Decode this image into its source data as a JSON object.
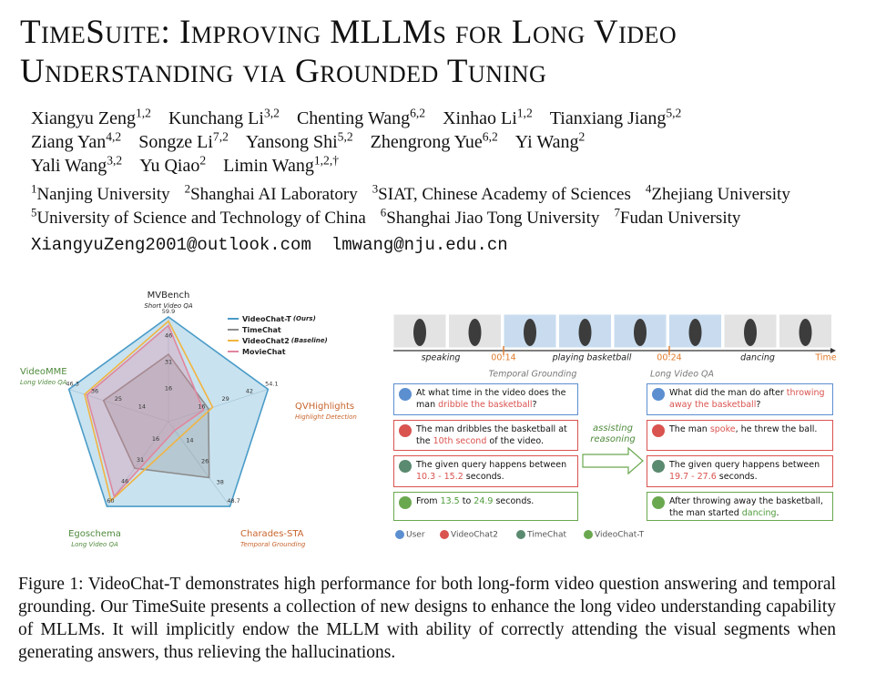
{
  "title": [
    "TimeSuite: Improving MLLMs for Long Video",
    "Understanding via Grounded Tuning"
  ],
  "authors": [
    {
      "name": "Xiangyu Zeng",
      "sup": "1,2"
    },
    {
      "name": "Kunchang Li",
      "sup": "3,2"
    },
    {
      "name": "Chenting Wang",
      "sup": "6,2"
    },
    {
      "name": "Xinhao Li",
      "sup": "1,2"
    },
    {
      "name": "Tianxiang Jiang",
      "sup": "5,2"
    },
    {
      "name": "Ziang Yan",
      "sup": "4,2"
    },
    {
      "name": "Songze Li",
      "sup": "7,2"
    },
    {
      "name": "Yansong Shi",
      "sup": "5,2"
    },
    {
      "name": "Zhengrong Yue",
      "sup": "6,2"
    },
    {
      "name": "Yi Wang",
      "sup": "2"
    },
    {
      "name": "Yali Wang",
      "sup": "3,2"
    },
    {
      "name": "Yu Qiao",
      "sup": "2"
    },
    {
      "name": "Limin Wang",
      "sup": "1,2,†"
    }
  ],
  "affiliations": [
    {
      "sup": "1",
      "name": "Nanjing University"
    },
    {
      "sup": "2",
      "name": "Shanghai AI Laboratory"
    },
    {
      "sup": "3",
      "name": "SIAT, Chinese Academy of Sciences"
    },
    {
      "sup": "4",
      "name": "Zhejiang University"
    },
    {
      "sup": "5",
      "name": "University of Science and Technology of China"
    },
    {
      "sup": "6",
      "name": "Shanghai Jiao Tong University"
    },
    {
      "sup": "7",
      "name": "Fudan University"
    }
  ],
  "emails": [
    "XiangyuZeng2001@outlook.com",
    "lmwang@nju.edu.cn"
  ],
  "radar": {
    "type": "radar",
    "axes": [
      {
        "name": "MVBench",
        "subtitle": "Short Video QA",
        "color": "#222222",
        "lim": [
          0,
          59.9
        ],
        "ticks": [
          16,
          31,
          46,
          59.9
        ]
      },
      {
        "name": "QVHighlights",
        "subtitle": "Highlight Detection",
        "color": "#c8642c",
        "lim": [
          0,
          54.1
        ],
        "ticks": [
          16,
          29,
          42,
          54.1
        ]
      },
      {
        "name": "Charades-STA",
        "subtitle": "Temporal Grounding",
        "color": "#c8642c",
        "lim": [
          0,
          48.7
        ],
        "ticks": [
          14,
          26,
          38,
          48.7
        ]
      },
      {
        "name": "Egoschema",
        "subtitle": "Long Video QA",
        "color": "#4f8a3c",
        "lim": [
          0,
          60
        ],
        "ticks": [
          16,
          31,
          46,
          60
        ]
      },
      {
        "name": "VideoMME",
        "subtitle": "Long Video QA",
        "color": "#4f8a3c",
        "lim": [
          0,
          46.3
        ],
        "ticks": [
          14,
          25,
          36,
          46.3
        ]
      }
    ],
    "series": [
      {
        "name": "VideoChat-T",
        "note": "(Ours)",
        "color": "#4a9cc8",
        "values": [
          59.9,
          54.1,
          48.7,
          60,
          46.3
        ]
      },
      {
        "name": "TimeChat",
        "color": "#8c8c8c",
        "values": [
          38.5,
          21.7,
          32.2,
          33,
          30.2
        ]
      },
      {
        "name": "VideoChat2",
        "note": "(Baseline)",
        "color": "#f2b440",
        "values": [
          57.5,
          24,
          9,
          56,
          39
        ]
      },
      {
        "name": "MovieChat",
        "color": "#e0869e",
        "values": [
          55,
          19,
          5,
          53,
          38
        ]
      }
    ]
  },
  "timeline": {
    "labels": [
      "speaking",
      "00:14",
      "playing basketball",
      "00:24",
      "dancing",
      "Time"
    ]
  },
  "sections": [
    "Temporal Grounding",
    "Long Video QA"
  ],
  "conversations": [
    [
      [
        "At what time in the video does the man ",
        "dribble the basketball",
        "?"
      ],
      [
        "The man dribbles the basketball at the ",
        "10th second",
        " of the video."
      ],
      [
        "The given query happens between ",
        "10.3 - 15.2",
        " seconds."
      ],
      [
        "From ",
        "13.5",
        " to ",
        "24.9",
        " seconds."
      ]
    ],
    [
      [
        "What did the man do after ",
        "throwing away the basketball",
        "?"
      ],
      [
        "The man ",
        "spoke",
        ", he threw the ball."
      ],
      [
        "The given query happens between ",
        "19.7 - 27.6",
        " seconds."
      ],
      [
        "After throwing away the basketball, the man started ",
        "dancing",
        "."
      ]
    ]
  ],
  "arrow_label": "assisting reasoning",
  "legend": [
    "User",
    "VideoChat2",
    "TimeChat",
    "VideoChat-T"
  ],
  "caption": "Figure 1: VideoChat-T demonstrates high performance for both long-form video question answering and temporal grounding. Our TimeSuite presents a collection of new designs to enhance the long video understanding capability of MLLMs. It will implicitly endow the MLLM with ability of correctly attending the visual segments when generating answers, thus relieving the hallucinations."
}
